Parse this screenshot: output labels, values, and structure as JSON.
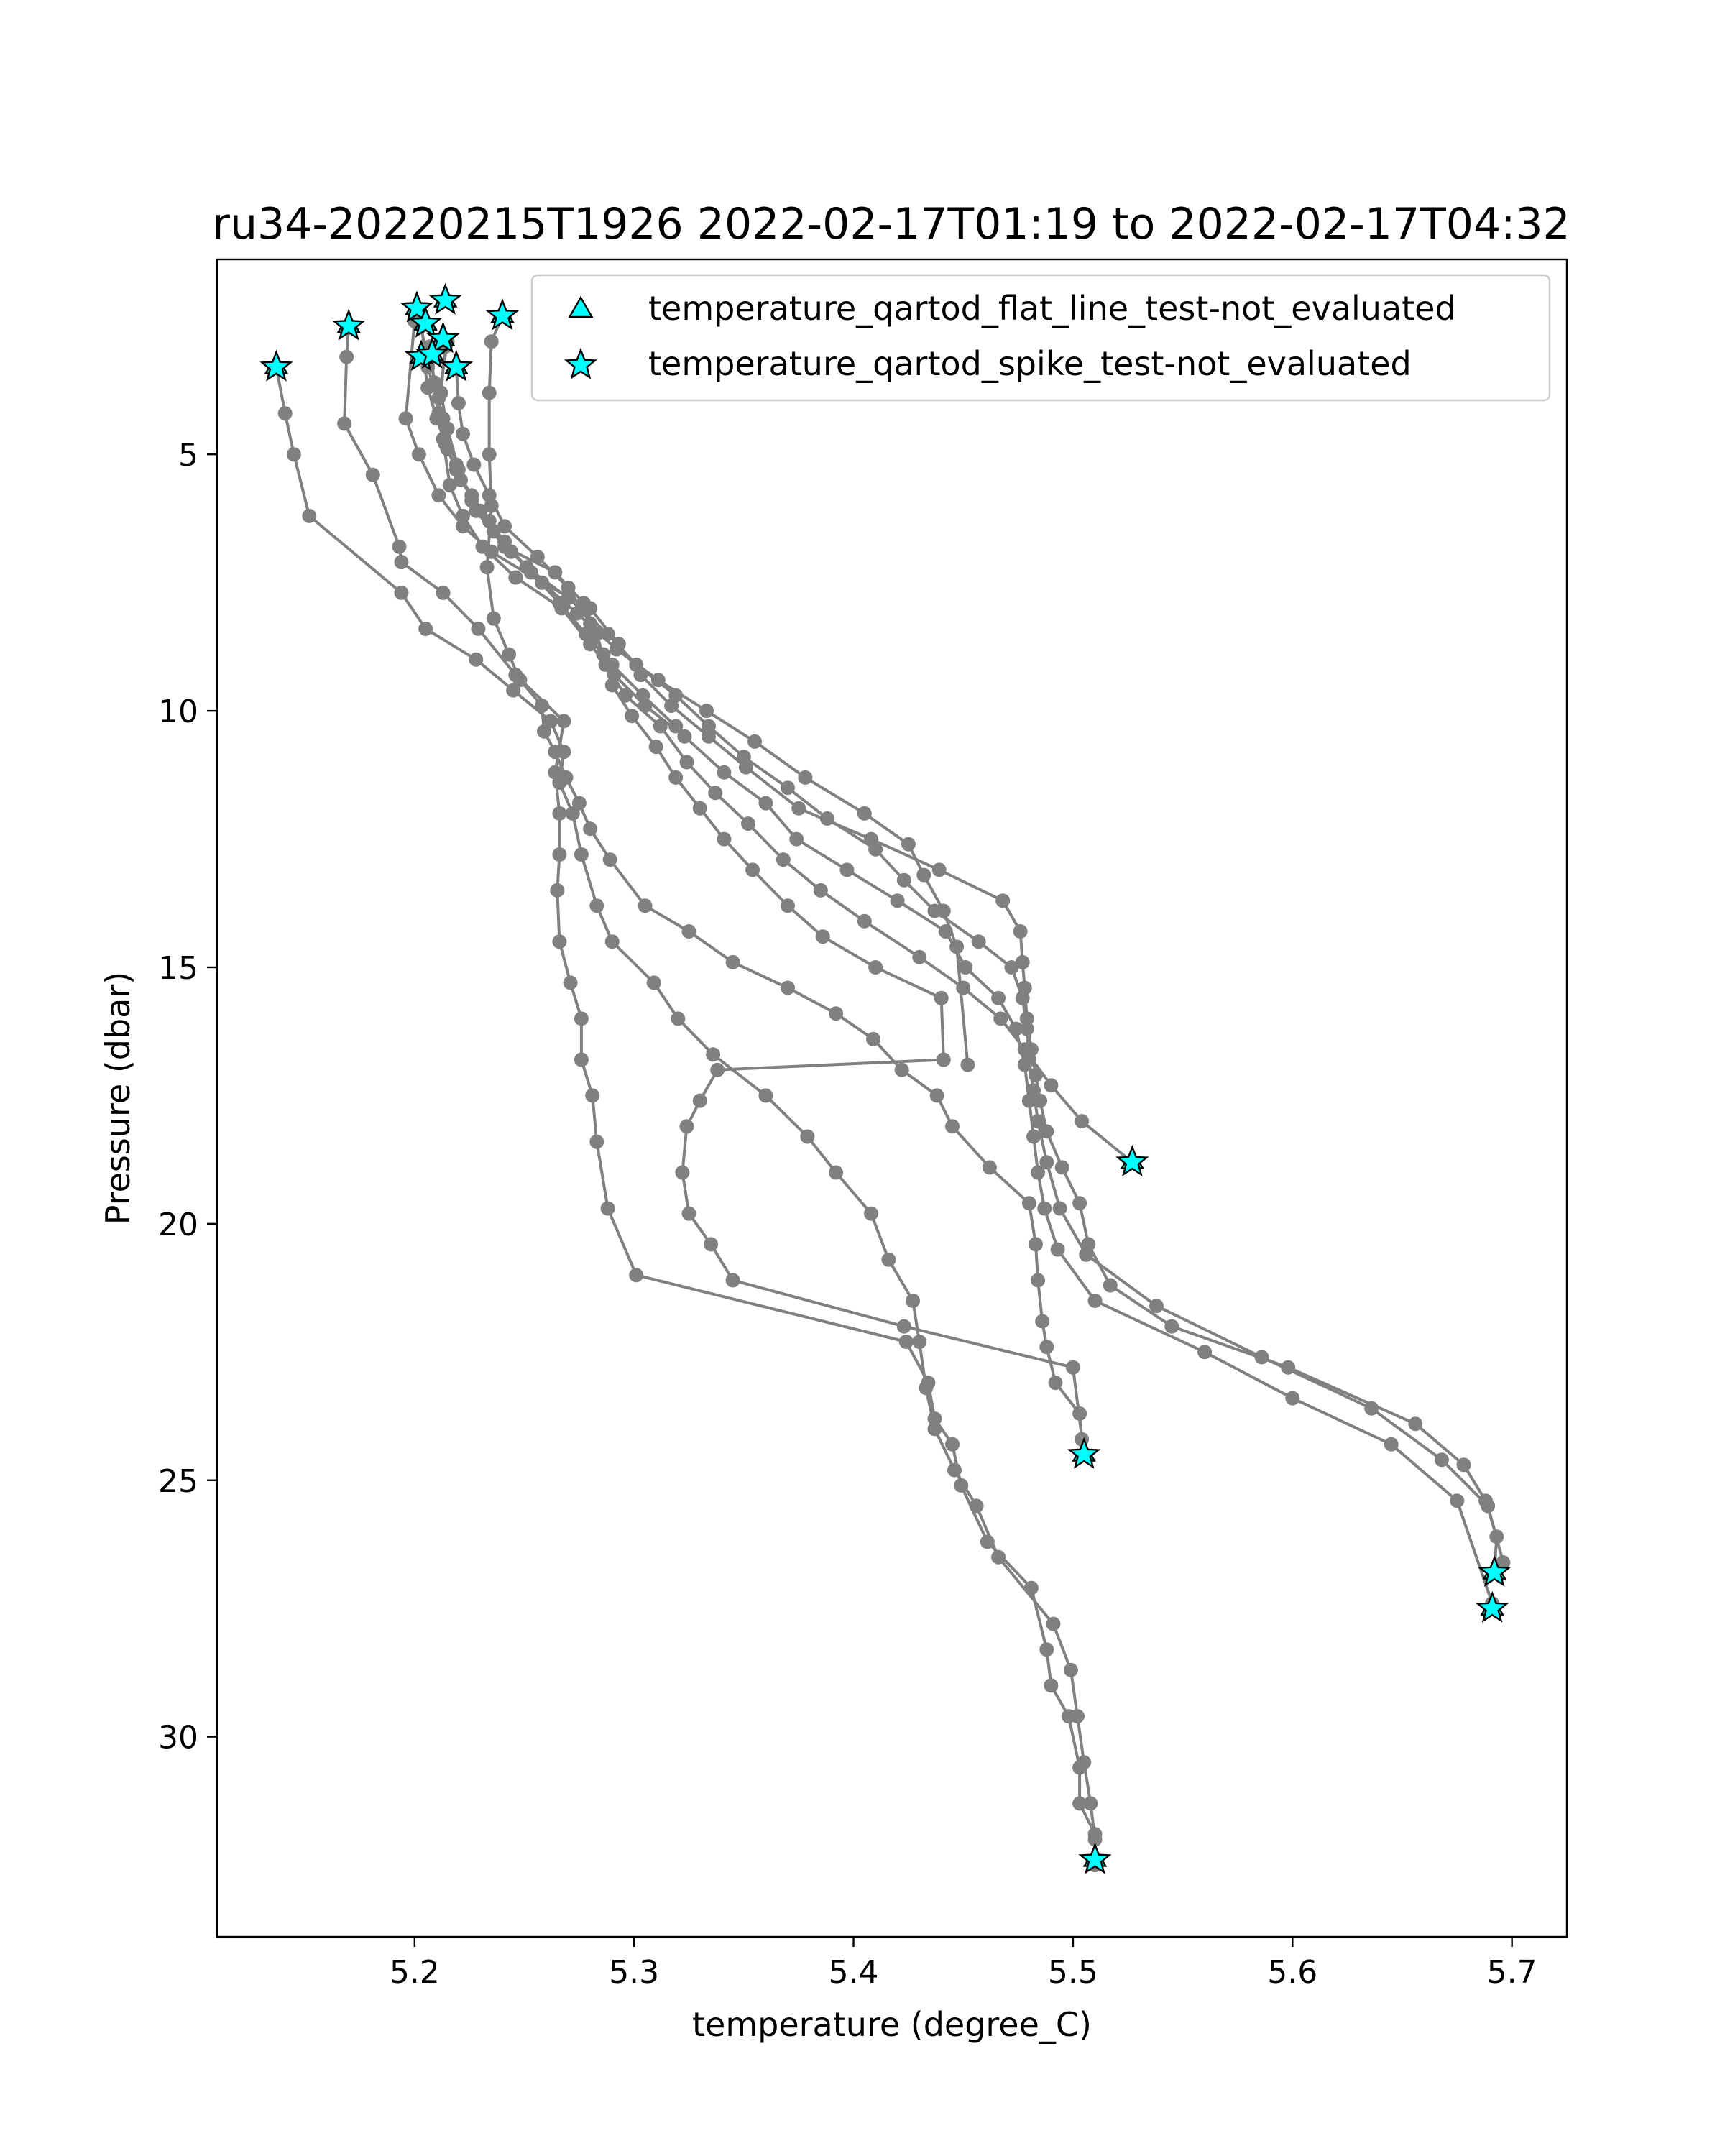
{
  "chart_data": {
    "type": "scatter",
    "title": "ru34-20220215T1926 2022-02-17T01:19 to 2022-02-17T04:32",
    "xlabel": "temperature (degree_C)",
    "ylabel": "Pressure (dbar)",
    "xlim": [
      5.11,
      5.725
    ],
    "ylim": [
      33.9,
      1.2
    ],
    "y_inverted": true,
    "grid": false,
    "legend_position": "top-right",
    "xticks": [
      5.2,
      5.3,
      5.4,
      5.5,
      5.6,
      5.7
    ],
    "xtick_labels": [
      "5.2",
      "5.3",
      "5.4",
      "5.5",
      "5.6",
      "5.7"
    ],
    "yticks": [
      5,
      10,
      15,
      20,
      25,
      30
    ],
    "ytick_labels": [
      "5",
      "10",
      "15",
      "20",
      "25",
      "30"
    ],
    "colors": {
      "profile_line": "#808080",
      "marker_fill": "#00ffff",
      "marker_edge": "#000000"
    },
    "legend": [
      {
        "label": "temperature_qartod_flat_line_test-not_evaluated",
        "marker": "triangle"
      },
      {
        "label": "temperature_qartod_spike_test-not_evaluated",
        "marker": "star"
      }
    ],
    "profiles": [
      {
        "x": [
          5.137,
          5.141,
          5.145,
          5.152,
          5.194,
          5.205,
          5.228,
          5.245,
          5.262,
          5.268,
          5.266,
          5.272,
          5.276,
          5.283,
          5.29,
          5.309,
          5.32,
          5.336,
          5.36,
          5.379,
          5.392,
          5.408,
          5.416,
          5.427,
          5.43,
          5.433,
          5.437,
          5.446,
          5.456,
          5.466,
          5.491,
          5.499,
          5.502,
          5.505,
          5.508,
          5.51,
          5.51
        ],
        "y": [
          3.3,
          4.2,
          5.0,
          6.2,
          7.7,
          8.4,
          9.0,
          9.6,
          10.2,
          10.8,
          11.4,
          12.0,
          12.8,
          13.8,
          14.5,
          15.3,
          16.0,
          16.7,
          17.5,
          18.3,
          19.0,
          19.8,
          20.7,
          21.5,
          22.3,
          23.2,
          24.0,
          24.8,
          25.5,
          26.5,
          27.8,
          28.7,
          29.6,
          30.5,
          31.3,
          32.0,
          32.4
        ]
      },
      {
        "x": [
          5.17,
          5.169,
          5.168,
          5.181,
          5.193,
          5.194,
          5.213,
          5.229,
          5.246,
          5.268,
          5.264,
          5.266,
          5.266,
          5.265,
          5.266,
          5.271,
          5.276,
          5.276,
          5.281,
          5.283,
          5.288,
          5.301,
          5.424,
          5.434,
          5.437,
          5.445,
          5.449,
          5.461,
          5.481,
          5.488,
          5.49,
          5.498,
          5.503,
          5.503,
          5.51,
          5.51
        ],
        "y": [
          2.5,
          3.1,
          4.4,
          5.4,
          6.8,
          7.1,
          7.7,
          8.4,
          9.3,
          10.2,
          11.2,
          12.0,
          12.8,
          13.5,
          14.5,
          15.3,
          16.0,
          16.8,
          17.5,
          18.4,
          19.7,
          21.0,
          22.3,
          23.1,
          23.8,
          24.3,
          25.1,
          26.2,
          27.1,
          28.3,
          29.0,
          29.6,
          30.6,
          31.3,
          31.9,
          32.5
        ]
      },
      {
        "x": [
          5.24,
          5.235,
          5.234,
          5.234,
          5.235,
          5.233,
          5.236,
          5.243,
          5.248,
          5.258,
          5.259,
          5.264,
          5.269,
          5.275,
          5.28,
          5.289,
          5.305,
          5.325,
          5.345,
          5.37,
          5.392,
          5.409,
          5.422,
          5.438,
          5.445,
          5.462,
          5.48,
          5.483,
          5.484,
          5.486,
          5.488,
          5.492,
          5.503,
          5.504,
          5.505
        ],
        "y": [
          2.3,
          2.8,
          3.8,
          5.0,
          6.0,
          7.2,
          8.2,
          8.9,
          9.4,
          9.9,
          10.4,
          10.8,
          11.3,
          11.8,
          12.3,
          12.9,
          13.8,
          14.3,
          14.9,
          15.4,
          15.9,
          16.4,
          17.0,
          17.5,
          18.1,
          18.9,
          19.6,
          20.4,
          21.1,
          21.9,
          22.4,
          23.1,
          23.7,
          24.2,
          24.5
        ]
      },
      {
        "x": [
          5.2,
          5.196,
          5.202,
          5.211,
          5.222,
          5.235,
          5.258,
          5.28,
          5.293,
          5.303,
          5.317,
          5.334,
          5.351,
          5.375,
          5.408,
          5.439,
          5.468,
          5.476,
          5.477,
          5.478,
          5.479,
          5.481,
          5.483,
          5.485,
          5.488,
          5.495,
          5.503,
          5.507,
          5.517,
          5.545,
          5.598,
          5.656,
          5.678,
          5.688,
          5.693,
          5.692
        ],
        "y": [
          2.4,
          4.3,
          5.0,
          5.8,
          6.4,
          6.9,
          7.5,
          8.0,
          8.7,
          9.3,
          9.9,
          10.5,
          11.1,
          11.9,
          12.5,
          13.1,
          13.7,
          14.3,
          14.9,
          15.4,
          16.0,
          16.6,
          17.1,
          17.6,
          18.2,
          18.9,
          19.6,
          20.4,
          21.2,
          22.0,
          22.8,
          23.9,
          24.7,
          25.4,
          26.1,
          26.8
        ]
      },
      {
        "x": [
          5.203,
          5.206,
          5.213,
          5.219,
          5.226,
          5.236,
          5.251,
          5.27,
          5.288,
          5.301,
          5.319,
          5.334,
          5.35,
          5.37,
          5.388,
          5.41,
          5.423,
          5.437,
          5.457,
          5.472,
          5.477,
          5.479,
          5.48,
          5.482,
          5.484,
          5.488,
          5.494,
          5.506,
          5.538,
          5.586,
          5.636,
          5.668,
          5.689,
          5.696
        ],
        "y": [
          2.5,
          3.3,
          4.3,
          5.2,
          5.9,
          6.5,
          7.2,
          7.8,
          8.5,
          9.1,
          9.7,
          10.3,
          10.9,
          11.5,
          12.1,
          12.7,
          13.3,
          13.9,
          14.5,
          15.0,
          15.6,
          16.2,
          16.8,
          17.4,
          18.0,
          18.8,
          19.7,
          20.6,
          21.6,
          22.6,
          23.6,
          24.6,
          25.5,
          26.6
        ]
      },
      {
        "x": [
          5.215,
          5.211,
          5.213,
          5.216,
          5.222,
          5.231,
          5.246,
          5.267,
          5.28,
          5.291,
          5.305,
          5.323,
          5.341,
          5.36,
          5.374,
          5.397,
          5.42,
          5.442,
          5.451,
          5.466,
          5.474,
          5.478,
          5.48,
          5.482,
          5.484,
          5.487,
          5.493,
          5.51,
          5.56,
          5.6,
          5.645,
          5.675,
          5.691
        ],
        "y": [
          2.8,
          3.9,
          4.7,
          5.6,
          6.2,
          6.8,
          7.4,
          8.0,
          8.7,
          9.3,
          9.9,
          10.5,
          11.2,
          11.8,
          12.5,
          13.1,
          13.7,
          14.3,
          15.0,
          15.6,
          16.2,
          16.9,
          17.6,
          18.3,
          19.0,
          19.7,
          20.5,
          21.5,
          22.5,
          23.4,
          24.3,
          25.4,
          27.4
        ]
      },
      {
        "x": [
          5.214,
          5.212,
          5.215,
          5.22,
          5.228,
          5.241,
          5.264,
          5.277,
          5.283,
          5.287,
          5.296,
          5.312,
          5.324,
          5.337,
          5.352,
          5.368,
          5.385,
          5.405,
          5.43,
          5.45,
          5.467,
          5.478,
          5.49,
          5.504,
          5.527
        ],
        "y": [
          2.9,
          3.8,
          4.5,
          5.3,
          6.1,
          6.8,
          7.3,
          7.9,
          8.5,
          9.1,
          9.7,
          10.3,
          11.0,
          11.6,
          12.2,
          12.9,
          13.5,
          14.1,
          14.8,
          15.4,
          16.0,
          16.6,
          17.3,
          18.0,
          18.8
        ]
      },
      {
        "x": [
          5.219,
          5.22,
          5.222,
          5.227,
          5.234,
          5.241,
          5.256,
          5.27,
          5.28,
          5.286,
          5.29,
          5.299,
          5.31,
          5.319,
          5.33,
          5.341,
          5.354,
          5.37,
          5.386,
          5.41,
          5.44,
          5.441,
          5.338,
          5.33,
          5.324,
          5.322,
          5.325,
          5.335,
          5.345,
          5.423,
          5.5,
          5.505
        ],
        "y": [
          3.3,
          4.0,
          4.6,
          5.2,
          5.8,
          6.4,
          7.0,
          7.6,
          8.3,
          8.9,
          9.5,
          10.1,
          10.7,
          11.3,
          11.9,
          12.5,
          13.1,
          13.8,
          14.4,
          15.0,
          15.6,
          16.8,
          17.0,
          17.6,
          18.1,
          19.0,
          19.8,
          20.4,
          21.1,
          22.0,
          22.8,
          24.5
        ]
      },
      {
        "x": [
          5.207,
          5.209,
          5.211,
          5.214,
          5.219,
          5.226,
          5.234,
          5.244,
          5.258,
          5.274,
          5.292,
          5.311,
          5.333,
          5.355,
          5.378,
          5.405,
          5.425,
          5.432,
          5.441,
          5.447,
          5.452
        ],
        "y": [
          2.9,
          3.6,
          4.2,
          4.8,
          5.3,
          5.8,
          6.3,
          6.9,
          7.5,
          8.1,
          8.8,
          9.4,
          10.0,
          10.6,
          11.3,
          12.0,
          12.6,
          13.2,
          13.9,
          14.6,
          16.9
        ]
      },
      {
        "x": [
          5.204,
          5.206,
          5.21,
          5.215,
          5.221,
          5.23,
          5.241,
          5.253,
          5.266,
          5.278,
          5.29,
          5.304,
          5.319
        ],
        "y": [
          3.1,
          3.7,
          4.3,
          4.9,
          5.5,
          6.1,
          6.7,
          7.3,
          7.9,
          8.5,
          9.1,
          9.7,
          10.3
        ]
      }
    ],
    "spike_test_flags": [
      {
        "x": 5.137,
        "y": 3.3
      },
      {
        "x": 5.17,
        "y": 2.5
      },
      {
        "x": 5.201,
        "y": 2.15
      },
      {
        "x": 5.205,
        "y": 2.45
      },
      {
        "x": 5.214,
        "y": 2.0
      },
      {
        "x": 5.24,
        "y": 2.3
      },
      {
        "x": 5.213,
        "y": 2.75
      },
      {
        "x": 5.203,
        "y": 3.1
      },
      {
        "x": 5.208,
        "y": 3.05
      },
      {
        "x": 5.219,
        "y": 3.3
      },
      {
        "x": 5.527,
        "y": 18.8
      },
      {
        "x": 5.505,
        "y": 24.5
      },
      {
        "x": 5.692,
        "y": 26.8
      },
      {
        "x": 5.691,
        "y": 27.5
      },
      {
        "x": 5.51,
        "y": 32.4
      }
    ],
    "flat_line_test_flags": [
      {
        "x": 5.137,
        "y": 3.3
      },
      {
        "x": 5.17,
        "y": 2.5
      },
      {
        "x": 5.201,
        "y": 2.15
      },
      {
        "x": 5.205,
        "y": 2.45
      },
      {
        "x": 5.214,
        "y": 2.0
      },
      {
        "x": 5.24,
        "y": 2.3
      },
      {
        "x": 5.213,
        "y": 2.75
      },
      {
        "x": 5.203,
        "y": 3.1
      },
      {
        "x": 5.208,
        "y": 3.05
      },
      {
        "x": 5.219,
        "y": 3.3
      },
      {
        "x": 5.527,
        "y": 18.8
      },
      {
        "x": 5.505,
        "y": 24.5
      },
      {
        "x": 5.692,
        "y": 26.8
      },
      {
        "x": 5.691,
        "y": 27.5
      },
      {
        "x": 5.51,
        "y": 32.4
      }
    ]
  }
}
